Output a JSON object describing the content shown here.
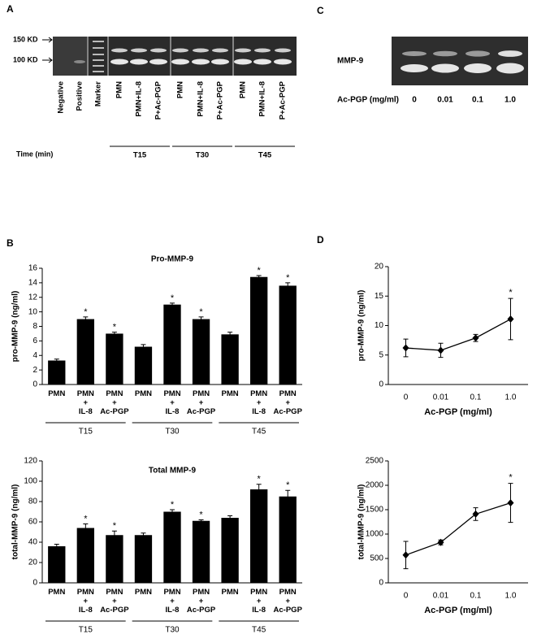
{
  "panel_labels": [
    "A",
    "C",
    "B",
    "D"
  ],
  "panel_a": {
    "markers": [
      "150 KD",
      "100 KD"
    ],
    "lanes": [
      "Negative",
      "Positive",
      "Marker",
      "PMN",
      "PMN+IL-8",
      "P+Ac-PGP",
      "PMN",
      "PMN+IL-8",
      "P+Ac-PGP",
      "PMN",
      "PMN+IL-8",
      "P+Ac-PGP"
    ],
    "time_label": "Time (min)",
    "groups": [
      "T15",
      "T30",
      "T45"
    ]
  },
  "panel_c": {
    "band_label": "MMP-9",
    "dose_label": "Ac-PGP (mg/ml)",
    "doses": [
      "0",
      "0.01",
      "0.1",
      "1.0"
    ]
  },
  "chart_data": [
    {
      "type": "bar",
      "title": "Pro-MMP-9",
      "ylabel": "pro-MMP-9 (ng/ml)",
      "categories": [
        "PMN",
        "PMN\n+\nIL-8",
        "PMN\n+\nAc-PGP",
        "PMN",
        "PMN\n+\nIL-8",
        "PMN\n+\nAc-PGP",
        "PMN",
        "PMN\n+\nIL-8",
        "PMN\n+\nAc-PGP"
      ],
      "groups": [
        "T15",
        "T30",
        "T45"
      ],
      "values": [
        3.3,
        9.0,
        7.0,
        5.2,
        11.0,
        9.0,
        6.9,
        14.8,
        13.6
      ],
      "errors": [
        0.2,
        0.3,
        0.2,
        0.3,
        0.2,
        0.3,
        0.3,
        0.2,
        0.4
      ],
      "significance": [
        null,
        "*",
        "*",
        null,
        "*",
        "*",
        null,
        "*",
        "*"
      ],
      "color": "#000000",
      "ylim": [
        0,
        16
      ],
      "yticks": [
        0,
        2,
        4,
        6,
        8,
        10,
        12,
        14,
        16
      ]
    },
    {
      "type": "bar",
      "title": "Total MMP-9",
      "ylabel": "total-MMP-9 (ng/ml)",
      "categories": [
        "PMN",
        "PMN\n+\nIL-8",
        "PMN\n+\nAc-PGP",
        "PMN",
        "PMN\n+\nIL-8",
        "PMN\n+\nAc-PGP",
        "PMN",
        "PMN\n+\nIL-8",
        "PMN\n+\nAc-PGP"
      ],
      "groups": [
        "T15",
        "T30",
        "T45"
      ],
      "values": [
        36,
        54,
        47,
        47,
        70,
        61,
        64,
        92,
        85
      ],
      "errors": [
        2,
        4,
        4,
        2,
        2,
        1,
        2,
        5,
        6
      ],
      "significance": [
        null,
        "*",
        "*",
        null,
        "*",
        "*",
        null,
        "*",
        "*"
      ],
      "color": "#000000",
      "ylim": [
        0,
        120
      ],
      "yticks": [
        0,
        20,
        40,
        60,
        80,
        100,
        120
      ]
    },
    {
      "type": "line",
      "ylabel": "pro-MMP-9 (ng/ml)",
      "xlabel": "Ac-PGP (mg/ml)",
      "categories": [
        "0",
        "0.01",
        "0.1",
        "1.0"
      ],
      "values": [
        6.2,
        5.8,
        7.9,
        11.1
      ],
      "errors": [
        1.5,
        1.2,
        0.6,
        3.5
      ],
      "significance": [
        null,
        null,
        null,
        "*"
      ],
      "color": "#000000",
      "ylim": [
        0,
        20
      ],
      "yticks": [
        0,
        5,
        10,
        15,
        20
      ]
    },
    {
      "type": "line",
      "ylabel": "total-MMP-9 (ng/ml)",
      "xlabel": "Ac-PGP (mg/ml)",
      "categories": [
        "0",
        "0.01",
        "0.1",
        "1.0"
      ],
      "values": [
        570,
        830,
        1410,
        1640
      ],
      "errors": [
        280,
        50,
        130,
        400
      ],
      "significance": [
        null,
        null,
        null,
        "*"
      ],
      "color": "#000000",
      "ylim": [
        0,
        2500
      ],
      "yticks": [
        0,
        500,
        1000,
        1500,
        2000,
        2500
      ]
    }
  ]
}
